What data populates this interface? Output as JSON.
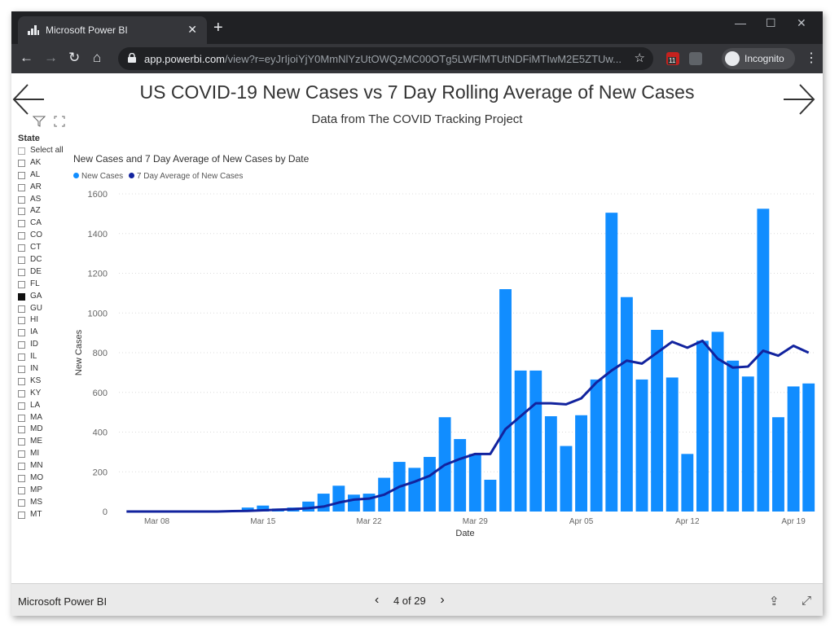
{
  "browser": {
    "tab_title": "Microsoft Power BI",
    "url_host": "app.powerbi.com",
    "url_path": "/view?r=eyJrIjoiYjY0MmNlYzUtOWQzMC00OTg5LWFlMTUtNDFiMTIwM2E5ZTUw...",
    "incognito_label": "Incognito",
    "ext_badge": "11"
  },
  "report": {
    "title": "US COVID-19 New Cases vs 7 Day Rolling Average of New Cases",
    "subtitle": "Data from The COVID Tracking Project"
  },
  "slicer": {
    "title": "State",
    "select_all": "Select all",
    "items": [
      "AK",
      "AL",
      "AR",
      "AS",
      "AZ",
      "CA",
      "CO",
      "CT",
      "DC",
      "DE",
      "FL",
      "GA",
      "GU",
      "HI",
      "IA",
      "ID",
      "IL",
      "IN",
      "KS",
      "KY",
      "LA",
      "MA",
      "MD",
      "ME",
      "MI",
      "MN",
      "MO",
      "MP",
      "MS",
      "MT"
    ],
    "checked": "GA"
  },
  "chart_data": {
    "type": "bar",
    "title": "New Cases and 7 Day Average of New Cases by Date",
    "xlabel": "Date",
    "ylabel": "New Cases",
    "ylim": [
      0,
      1600
    ],
    "yticks": [
      0,
      200,
      400,
      600,
      800,
      1000,
      1200,
      1400,
      1600
    ],
    "xticks": [
      "Mar 08",
      "Mar 15",
      "Mar 22",
      "Mar 29",
      "Apr 05",
      "Apr 12",
      "Apr 19"
    ],
    "xtick_index": [
      2,
      9,
      16,
      23,
      30,
      37,
      44
    ],
    "grid": true,
    "legend_position": "top-left",
    "colors": {
      "bars": "#118dff",
      "line": "#12239e"
    },
    "categories": [
      "Mar 06",
      "Mar 07",
      "Mar 08",
      "Mar 09",
      "Mar 10",
      "Mar 11",
      "Mar 12",
      "Mar 13",
      "Mar 14",
      "Mar 15",
      "Mar 16",
      "Mar 17",
      "Mar 18",
      "Mar 19",
      "Mar 20",
      "Mar 21",
      "Mar 22",
      "Mar 23",
      "Mar 24",
      "Mar 25",
      "Mar 26",
      "Mar 27",
      "Mar 28",
      "Mar 29",
      "Mar 30",
      "Mar 31",
      "Apr 01",
      "Apr 02",
      "Apr 03",
      "Apr 04",
      "Apr 05",
      "Apr 06",
      "Apr 07",
      "Apr 08",
      "Apr 09",
      "Apr 10",
      "Apr 11",
      "Apr 12",
      "Apr 13",
      "Apr 14",
      "Apr 15",
      "Apr 16",
      "Apr 17",
      "Apr 18",
      "Apr 19",
      "Apr 20"
    ],
    "series": [
      {
        "name": "New Cases",
        "type": "bar",
        "values": [
          0,
          0,
          0,
          0,
          0,
          0,
          0,
          0,
          20,
          30,
          15,
          20,
          50,
          90,
          130,
          85,
          90,
          170,
          250,
          220,
          275,
          475,
          365,
          290,
          160,
          1120,
          710,
          710,
          480,
          330,
          485,
          665,
          1505,
          1080,
          665,
          915,
          675,
          290,
          860,
          905,
          760,
          680,
          1525,
          475,
          630,
          645
        ]
      },
      {
        "name": "7 Day Average of New Cases",
        "type": "line",
        "values": [
          0,
          0,
          0,
          0,
          0,
          0,
          0,
          2,
          3,
          6,
          9,
          12,
          17,
          25,
          45,
          60,
          65,
          85,
          125,
          150,
          180,
          235,
          265,
          290,
          290,
          415,
          480,
          545,
          545,
          540,
          570,
          650,
          710,
          760,
          745,
          800,
          855,
          825,
          860,
          770,
          725,
          730,
          810,
          785,
          835,
          800
        ]
      }
    ]
  }
}
